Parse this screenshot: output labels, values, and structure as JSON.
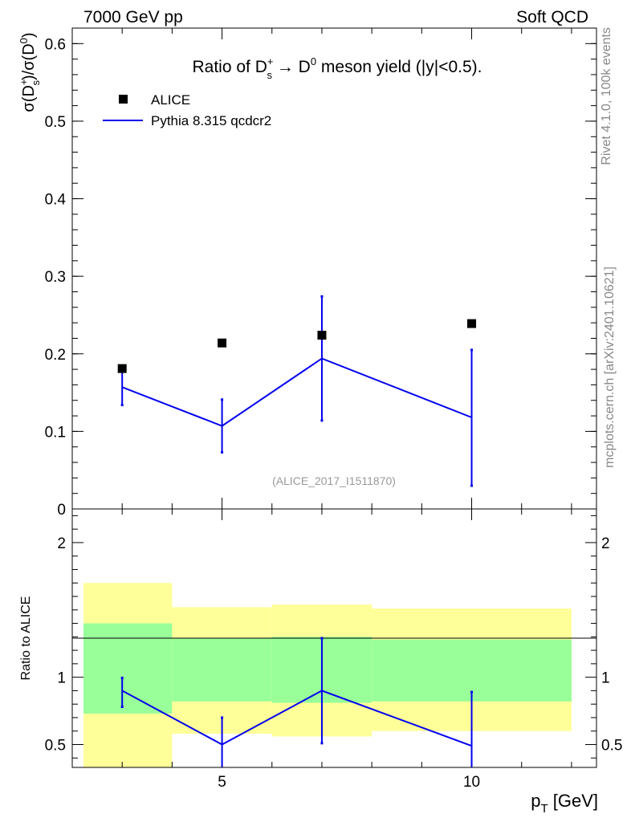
{
  "header": {
    "left": "7000 GeV pp",
    "right": "Soft QCD",
    "side_top": "Rivet 4.1.0,  100k events",
    "side_bottom": "mcplots.cern.ch [arXiv:2401.10621]"
  },
  "colors": {
    "data_marker": "#000000",
    "mc_line": "#0000ee",
    "band_outer": "#ffff99",
    "band_inner": "#99ff99",
    "unity_line": "#000000"
  },
  "chart_data": [
    {
      "type": "scatter",
      "title": "Ratio of D_s^+ → D^0 meson yield (|y|<0.5).",
      "title_parts": {
        "prefix": "Ratio of D",
        "sup": "+",
        "sub": "s",
        "arrow": "→",
        "d0": "D",
        "d0_sup": "0",
        "suffix": "meson yield (|y|<0.5)."
      },
      "ylabel": "σ(D_s^+)/σ(D^0)",
      "ylabel_parts": {
        "sigma_open": "σ(D",
        "sup": "+",
        "sub": "s",
        "mid": ")/σ(D",
        "sup2": "0",
        "close": ")"
      },
      "xlim": [
        2,
        12.5
      ],
      "ylim": [
        0,
        0.62
      ],
      "yticks": [
        0,
        0.1,
        0.2,
        0.3,
        0.4,
        0.5,
        0.6
      ],
      "ytick_labels": [
        "0",
        "0.1",
        "0.2",
        "0.3",
        "0.4",
        "0.5",
        "0.6"
      ],
      "watermark": "(ALICE_2017_I1511870)",
      "legend": {
        "placement": "top-left",
        "entries": [
          "ALICE",
          "Pythia 8.315 qcdcr2"
        ]
      },
      "series": [
        {
          "name": "ALICE",
          "kind": "markers",
          "points": [
            {
              "x": 3,
              "y": 0.181
            },
            {
              "x": 5,
              "y": 0.214
            },
            {
              "x": 7,
              "y": 0.224
            },
            {
              "x": 10,
              "y": 0.239
            }
          ]
        },
        {
          "name": "Pythia 8.315 qcdcr2",
          "kind": "line",
          "points": [
            {
              "x": 3,
              "y": 0.157,
              "ylo": 0.134,
              "yhi": 0.181
            },
            {
              "x": 5,
              "y": 0.107,
              "ylo": 0.073,
              "yhi": 0.141
            },
            {
              "x": 7,
              "y": 0.194,
              "ylo": 0.114,
              "yhi": 0.274
            },
            {
              "x": 10,
              "y": 0.118,
              "ylo": 0.03,
              "yhi": 0.205
            }
          ]
        }
      ]
    },
    {
      "type": "line",
      "ylabel": "Ratio to ALICE",
      "xlabel": "p_T [GeV]",
      "xlabel_parts": {
        "main": "p",
        "sub": "T",
        "unit": "[GeV]"
      },
      "xlim": [
        2,
        12.5
      ],
      "ylim": [
        0.33,
        2.25
      ],
      "xticks": [
        5,
        10
      ],
      "xtick_labels": [
        "5",
        "10"
      ],
      "yticks": [
        0.5,
        1,
        2
      ],
      "ytick_labels": [
        "0.5",
        "1",
        "2"
      ],
      "bands": [
        {
          "xlo": 2,
          "xhi": 4,
          "outer_lo": 0.33,
          "outer_hi": 1.7,
          "inner_lo": 0.73,
          "inner_hi": 1.4
        },
        {
          "xlo": 4,
          "xhi": 6,
          "outer_lo": 0.58,
          "outer_hi": 1.52,
          "inner_lo": 0.82,
          "inner_hi": 1.29
        },
        {
          "xlo": 6,
          "xhi": 8,
          "outer_lo": 0.56,
          "outer_hi": 1.54,
          "inner_lo": 0.81,
          "inner_hi": 1.3
        },
        {
          "xlo": 8,
          "xhi": 12,
          "outer_lo": 0.6,
          "outer_hi": 1.51,
          "inner_lo": 0.82,
          "inner_hi": 1.28
        }
      ],
      "series": [
        {
          "name": "Pythia 8.315 qcdcr2",
          "points": [
            {
              "x": 3,
              "y": 0.9,
              "ylo": 0.78,
              "yhi": 0.995
            },
            {
              "x": 5,
              "y": 0.5,
              "ylo": 0.33,
              "yhi": 0.7
            },
            {
              "x": 7,
              "y": 0.9,
              "ylo": 0.51,
              "yhi": 1.29
            },
            {
              "x": 10,
              "y": 0.49,
              "ylo": 0.33,
              "yhi": 0.89
            }
          ]
        }
      ]
    }
  ]
}
